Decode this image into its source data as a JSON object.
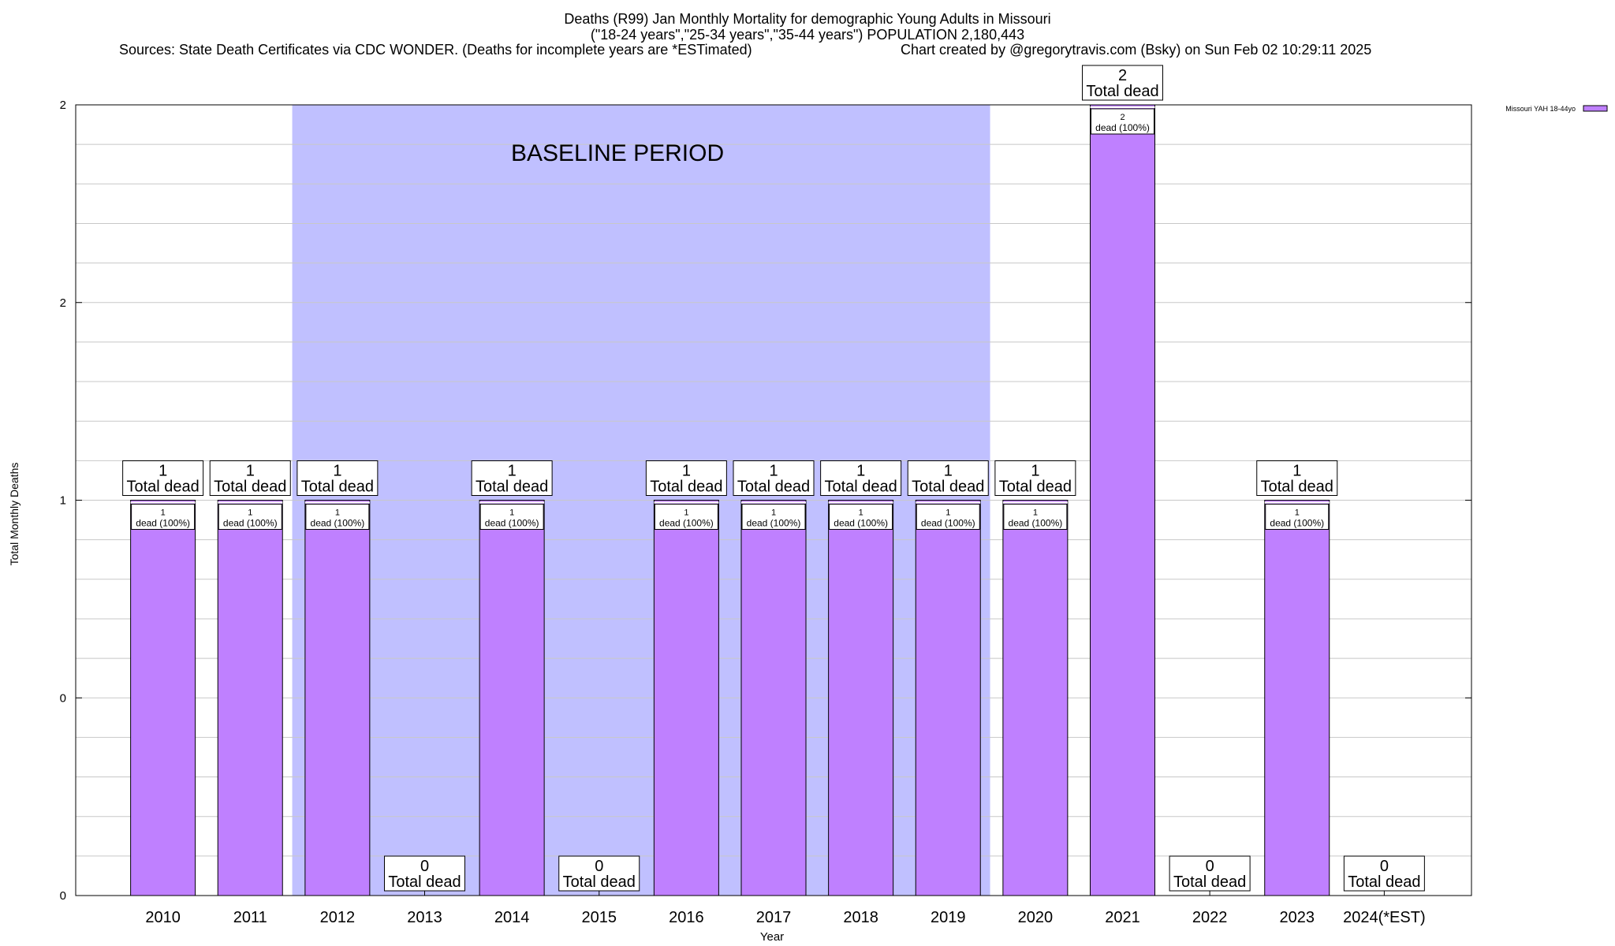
{
  "title_lines": [
    "Deaths (R99) Jan Monthly Mortality for demographic Young Adults in Missouri",
    "(\"18-24 years\",\"25-34 years\",\"35-44 years\") POPULATION 2,180,443"
  ],
  "sources": "Sources: State Death Certificates via CDC WONDER. (Deaths for incomplete years are *ESTimated)",
  "credit": "Chart created by @gregorytravis.com (Bsky) on Sun Feb 02 10:29:11 2025",
  "chart_data": {
    "type": "bar",
    "ylabel": "Total Monthly Deaths",
    "xlabel": "Year",
    "categories": [
      "2010",
      "2011",
      "2012",
      "2013",
      "2014",
      "2015",
      "2016",
      "2017",
      "2018",
      "2019",
      "2020",
      "2021",
      "2022",
      "2023",
      "2024(*EST)"
    ],
    "series": [
      {
        "name": "Missouri YAH 18-44yo",
        "values": [
          1,
          1,
          1,
          0,
          1,
          0,
          1,
          1,
          1,
          1,
          1,
          2,
          0,
          1,
          0
        ],
        "color": "#bf80ff"
      }
    ],
    "ylim": [
      0,
      2
    ],
    "y_tick_labels": [
      "0",
      "0",
      "1",
      "2",
      "2"
    ],
    "total_label_suffix": "Total dead",
    "bar_label_suffix": "dead (100%)",
    "baseline": {
      "label": "BASELINE PERIOD",
      "from": "2012",
      "to": "2019",
      "color": "#c0c0ff"
    },
    "legend_position": "top-right",
    "grid": true
  }
}
